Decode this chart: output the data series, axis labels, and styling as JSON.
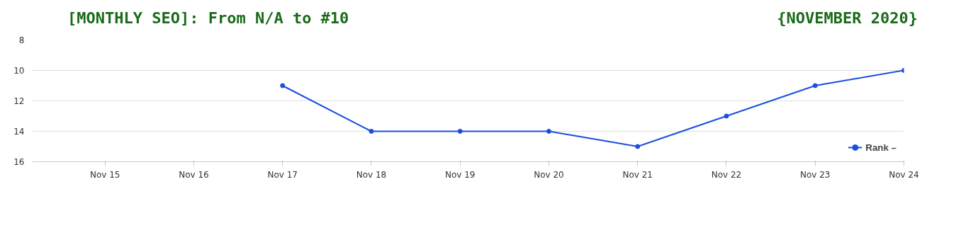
{
  "chart_data": {
    "type": "line",
    "title": "[MONTHLY SEO]: From N/A to #10",
    "subtitle": "{NOVEMBER 2020}",
    "categories": [
      "Nov 15",
      "Nov 16",
      "Nov 17",
      "Nov 18",
      "Nov 19",
      "Nov 20",
      "Nov 21",
      "Nov 22",
      "Nov 23",
      "Nov 24"
    ],
    "series": [
      {
        "name": "Rank –",
        "color": "#1a4fe0",
        "values": [
          null,
          null,
          11,
          14,
          14,
          14,
          15,
          13,
          11,
          10
        ]
      }
    ],
    "ylim": [
      16,
      8
    ],
    "yticks": [
      8,
      10,
      12,
      14,
      16
    ],
    "grid": "y",
    "legend": "bottom right",
    "marker": "circle",
    "line_style": "solid"
  }
}
